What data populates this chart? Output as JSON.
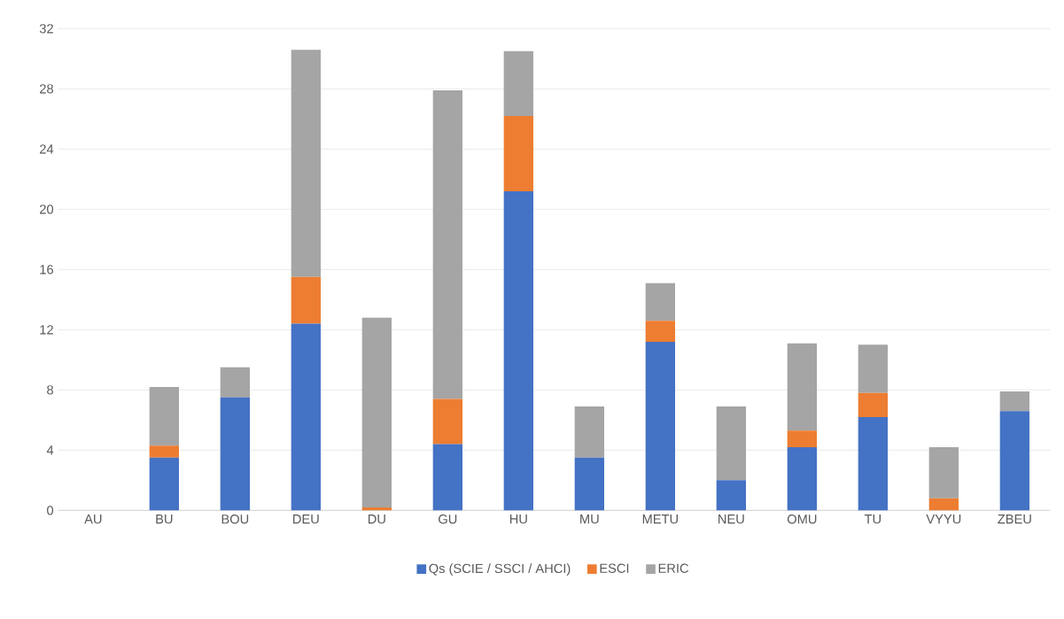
{
  "chart_data": {
    "type": "bar",
    "stacked": true,
    "categories": [
      "AU",
      "BU",
      "BOU",
      "DEU",
      "DU",
      "GU",
      "HU",
      "MU",
      "METU",
      "NEU",
      "OMU",
      "TU",
      "VYYU",
      "ZBEU"
    ],
    "series": [
      {
        "name": "Qs (SCIE / SSCI / AHCI)",
        "color": "#4472c4",
        "values": [
          0,
          3.5,
          7.5,
          12.4,
          0,
          4.4,
          21.2,
          3.5,
          11.2,
          2.0,
          4.2,
          6.2,
          0,
          6.6
        ]
      },
      {
        "name": "ESCI",
        "color": "#ed7d31",
        "values": [
          0,
          0.8,
          0,
          3.1,
          0.2,
          3.0,
          5.0,
          0,
          1.4,
          0,
          1.1,
          1.6,
          0.8,
          0
        ]
      },
      {
        "name": "ERIC",
        "color": "#a5a5a5",
        "values": [
          0,
          3.9,
          2.0,
          15.1,
          12.6,
          20.5,
          4.3,
          3.4,
          2.5,
          4.9,
          5.8,
          3.2,
          3.4,
          1.3
        ]
      }
    ],
    "ylim": [
      0,
      32
    ],
    "yticks": [
      0,
      4,
      8,
      12,
      16,
      20,
      24,
      28,
      32
    ],
    "grid": "y",
    "legend": "bottom"
  }
}
